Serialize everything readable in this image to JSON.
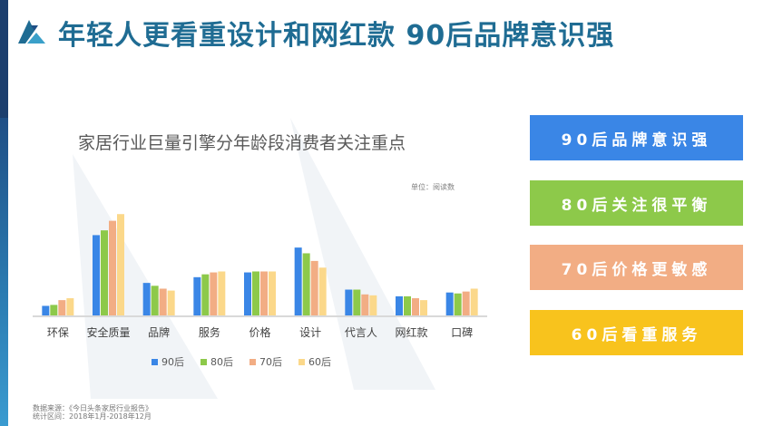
{
  "headline": "年轻人更看重设计和网红款  90后品牌意识强",
  "unit_note": "单位：阅读数",
  "source_lines": [
    "数据来源：《今日头条家居行业报告》",
    "统计区间：2018年1月-2018年12月"
  ],
  "cards": [
    {
      "label": "90后品牌意识强",
      "color": "#3a86e6"
    },
    {
      "label": "80后关注很平衡",
      "color": "#8dc94a"
    },
    {
      "label": "70后价格更敏感",
      "color": "#f2ad84"
    },
    {
      "label": "60后看重服务",
      "color": "#f8c31d"
    }
  ],
  "chart_data": {
    "type": "bar",
    "title": "家居行业巨量引擎分年龄段消费者关注重点",
    "xlabel": "",
    "ylabel": "",
    "categories": [
      "环保",
      "安全质量",
      "品牌",
      "服务",
      "价格",
      "设计",
      "代言人",
      "网红款",
      "口碑"
    ],
    "ylim": [
      0,
      110
    ],
    "grid": false,
    "legend_position": "bottom",
    "series": [
      {
        "name": "90后",
        "color": "#3a86e6",
        "values": [
          10,
          84,
          34,
          40,
          45,
          71,
          27,
          20,
          24
        ]
      },
      {
        "name": "80后",
        "color": "#8dc94a",
        "values": [
          11,
          89,
          31,
          43,
          46,
          65,
          27,
          20,
          23
        ]
      },
      {
        "name": "70后",
        "color": "#f2ad84",
        "values": [
          16,
          99,
          28,
          45,
          46,
          57,
          22,
          18,
          25
        ]
      },
      {
        "name": "60后",
        "color": "#fbd88a",
        "values": [
          18,
          106,
          26,
          46,
          46,
          50,
          21,
          16,
          28
        ]
      }
    ]
  }
}
